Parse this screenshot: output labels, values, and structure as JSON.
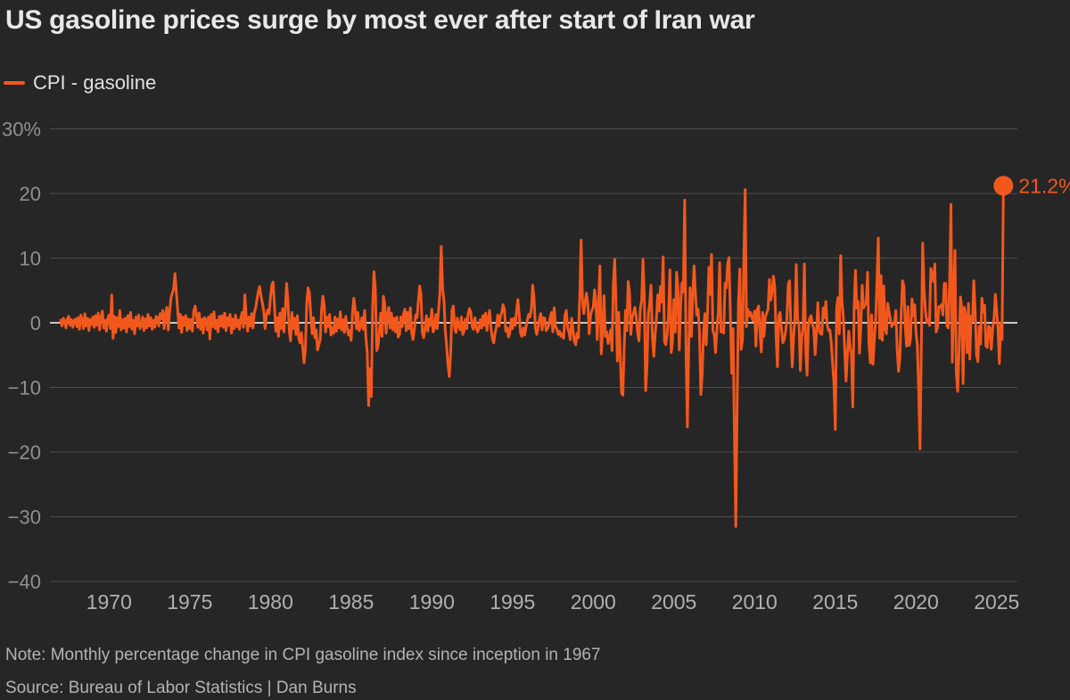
{
  "title": "US gasoline prices surge by most ever after start of Iran war",
  "legend": {
    "label": "CPI - gasoline",
    "color": "#f2581c"
  },
  "note": "Note: Monthly percentage change in CPI gasoline index since inception in 1967",
  "source": "Source: Bureau of Labor Statistics | Dan Burns",
  "chart_data": {
    "type": "line",
    "title": "US gasoline prices surge by most ever after start of Iran war",
    "series_name": "CPI - gasoline",
    "unit": "percent change, monthly",
    "grid": "horizontal",
    "zero_line": true,
    "legend_position": "top-left",
    "ylim": [
      -42,
      33
    ],
    "xlim": [
      1966.5,
      2026.5
    ],
    "start_year": 1967,
    "x_step_years": 0.0833,
    "x_ticks": [
      1970,
      1975,
      1980,
      1985,
      1990,
      1995,
      2000,
      2005,
      2010,
      2015,
      2020,
      2025
    ],
    "y_ticks": [
      {
        "value": 30,
        "label": "30%"
      },
      {
        "value": 20,
        "label": "20"
      },
      {
        "value": 10,
        "label": "10"
      },
      {
        "value": 0,
        "label": "0"
      },
      {
        "value": -10,
        "label": "−10"
      },
      {
        "value": -20,
        "label": "−20"
      },
      {
        "value": -30,
        "label": "−30"
      },
      {
        "value": -40,
        "label": "−40"
      }
    ],
    "end_label": "21.2%",
    "end_value": 21.2,
    "colors": {
      "background": "#262626",
      "title_text": "#e8e8e8",
      "legend_text": "#e0e0e0",
      "grid": "#4d4d4d",
      "zero_line": "#ffffff",
      "axis_y_text": "#909090",
      "axis_x_text": "#b0b0b0",
      "line": "#f2581c",
      "note_text": "#b3b3b3"
    },
    "monthly_values_by_year": [
      [
        0.4,
        -0.5,
        0.7,
        0.3,
        -0.8,
        0.6,
        1.0,
        -0.4,
        0.5,
        -0.7,
        0.3,
        0.6
      ],
      [
        -0.6,
        0.8,
        -1.0,
        1.2,
        0.4,
        -0.9,
        1.4,
        -0.5,
        0.7,
        -1.2,
        0.5,
        -0.3
      ],
      [
        0.9,
        -0.7,
        1.1,
        -0.4,
        1.5,
        -1.1,
        0.6,
        1.8,
        -0.8,
        0.4,
        -1.3,
        0.7
      ],
      [
        1.2,
        -0.9,
        4.3,
        -2.4,
        1.0,
        -1.5,
        0.8,
        -0.6,
        1.9,
        -1.1,
        0.5,
        -0.8
      ],
      [
        0.7,
        -1.4,
        1.1,
        -0.6,
        1.6,
        -1.0,
        0.4,
        -1.7,
        0.9,
        -0.5,
        1.2,
        -0.9
      ],
      [
        -0.4,
        0.9,
        -1.2,
        0.6,
        -0.8,
        1.3,
        -0.5,
        0.8,
        -1.0,
        0.4,
        -0.7,
        1.0
      ],
      [
        0.8,
        -0.5,
        1.4,
        0.6,
        1.9,
        -0.9,
        1.2,
        2.4,
        -1.1,
        1.6,
        3.8,
        4.6
      ],
      [
        5.2,
        7.6,
        4.9,
        2.1,
        -0.8,
        1.3,
        -1.5,
        0.9,
        -0.4,
        1.1,
        -1.2,
        0.6
      ],
      [
        -0.9,
        0.5,
        -1.3,
        1.8,
        2.6,
        1.2,
        -0.7,
        1.5,
        -1.0,
        0.6,
        -1.6,
        0.8
      ],
      [
        0.5,
        -1.1,
        0.9,
        -2.5,
        1.3,
        -0.6,
        1.7,
        -0.9,
        0.4,
        -1.4,
        1.0,
        -0.5
      ],
      [
        1.1,
        -0.7,
        1.5,
        -1.2,
        0.8,
        -0.4,
        1.3,
        -1.6,
        0.6,
        -0.9,
        1.2,
        -0.6
      ],
      [
        0.4,
        -1.0,
        0.8,
        1.6,
        -0.7,
        4.3,
        1.1,
        -1.3,
        0.9,
        -0.5,
        1.4,
        -0.8
      ],
      [
        1.5,
        2.3,
        3.6,
        4.8,
        5.6,
        4.2,
        3.1,
        1.8,
        -0.9,
        1.2,
        2.0,
        1.4
      ],
      [
        3.9,
        5.8,
        6.3,
        2.7,
        -1.3,
        0.8,
        -2.1,
        1.5,
        -0.9,
        2.2,
        -1.4,
        1.8
      ],
      [
        6.1,
        3.4,
        -1.2,
        -2.8,
        1.6,
        -0.9,
        0.7,
        -1.8,
        1.1,
        -2.4,
        -3.1,
        -1.5
      ],
      [
        -3.8,
        -6.2,
        -4.1,
        2.9,
        5.4,
        4.6,
        1.2,
        -1.7,
        0.8,
        -2.3,
        -1.1,
        -4.2
      ],
      [
        -3.4,
        -2.6,
        1.9,
        4.1,
        2.8,
        -1.4,
        0.9,
        -0.6,
        1.3,
        -1.9,
        -0.8,
        -1.6
      ],
      [
        0.9,
        -1.3,
        0.6,
        -0.8,
        1.7,
        -1.1,
        0.5,
        -1.5,
        1.0,
        -0.7,
        -1.9,
        -1.2
      ],
      [
        -2.7,
        1.4,
        3.8,
        2.1,
        -0.9,
        1.6,
        -1.2,
        -0.5,
        0.8,
        -1.0,
        1.9,
        -2.4
      ],
      [
        -4.6,
        -12.8,
        -7.1,
        -11.4,
        2.3,
        7.9,
        5.4,
        -4.3,
        -3.6,
        -1.2,
        1.5,
        -2.1
      ],
      [
        4.1,
        2.9,
        -1.6,
        1.2,
        2.4,
        -0.8,
        1.5,
        -1.1,
        0.7,
        -1.4,
        0.9,
        -2.2
      ],
      [
        -1.8,
        0.9,
        -0.6,
        1.4,
        2.1,
        -1.2,
        1.6,
        -0.9,
        2.3,
        -1.5,
        -2.6,
        -1.0
      ],
      [
        1.2,
        0.8,
        3.4,
        5.7,
        4.2,
        -1.6,
        -2.3,
        -0.9,
        1.1,
        -1.3,
        0.6,
        -0.4
      ],
      [
        2.1,
        -1.4,
        -0.7,
        1.3,
        -0.9,
        1.8,
        4.6,
        11.8,
        5.3,
        3.4,
        -1.2,
        -3.6
      ],
      [
        -6.4,
        -8.3,
        -4.7,
        1.9,
        2.6,
        -0.8,
        -1.5,
        0.7,
        -0.4,
        -1.1,
        0.9,
        -1.8
      ],
      [
        -1.2,
        0.6,
        -0.9,
        1.4,
        2.2,
        1.6,
        -0.5,
        -1.0,
        0.8,
        -0.6,
        -1.4,
        -0.9
      ],
      [
        0.5,
        -0.8,
        1.1,
        -0.4,
        1.5,
        -1.2,
        0.7,
        1.9,
        -0.9,
        -2.4,
        -3.1,
        -1.6
      ],
      [
        -0.7,
        1.2,
        -0.5,
        0.9,
        1.6,
        2.8,
        2.1,
        -1.3,
        -0.8,
        -2.2,
        -1.5,
        0.6
      ],
      [
        -0.9,
        0.7,
        -0.4,
        1.8,
        3.6,
        1.2,
        -1.6,
        -2.1,
        -0.8,
        -1.9,
        -0.6,
        0.4
      ],
      [
        1.3,
        0.9,
        2.1,
        5.8,
        3.9,
        -0.7,
        -1.8,
        -0.9,
        0.6,
        1.4,
        -1.1,
        0.8
      ],
      [
        0.7,
        -1.2,
        -0.9,
        -0.4,
        0.8,
        1.6,
        -1.4,
        2.3,
        -0.6,
        -1.0,
        -1.8,
        -1.3
      ],
      [
        -2.1,
        -1.7,
        -2.4,
        1.2,
        1.9,
        -0.8,
        -1.5,
        -2.6,
        0.7,
        -1.1,
        -2.9,
        -3.4
      ],
      [
        -1.6,
        -2.3,
        4.1,
        12.8,
        3.7,
        1.4,
        3.2,
        4.6,
        2.8,
        -1.7,
        1.2,
        1.9
      ],
      [
        2.4,
        5.1,
        3.3,
        -2.6,
        2.9,
        8.8,
        -4.8,
        -1.3,
        4.2,
        -2.1,
        -1.4,
        -3.2
      ],
      [
        -2.4,
        -1.1,
        -4.3,
        6.2,
        9.8,
        2.7,
        -5.9,
        1.6,
        -4.4,
        -10.8,
        -11.2,
        -3.8
      ],
      [
        1.9,
        -1.2,
        6.4,
        4.7,
        -1.8,
        0.9,
        1.5,
        2.4,
        0.8,
        -1.6,
        -2.8,
        2.2
      ],
      [
        3.4,
        9.8,
        4.1,
        -10.5,
        -6.7,
        1.3,
        2.9,
        5.8,
        -2.4,
        -5.2,
        -1.9,
        0.7
      ],
      [
        4.3,
        1.8,
        5.6,
        3.2,
        10.2,
        -2.9,
        -3.4,
        -1.8,
        1.4,
        8.2,
        -4.6,
        -2.7
      ],
      [
        3.6,
        -1.4,
        7.8,
        5.5,
        -4.2,
        2.6,
        6.2,
        4.8,
        19.0,
        -4.6,
        -16.1,
        -3.9
      ],
      [
        5.4,
        -2.1,
        4.3,
        8.8,
        4.6,
        1.2,
        2.1,
        -1.3,
        -11.1,
        -7.9,
        -1.6,
        1.4
      ],
      [
        -3.4,
        1.6,
        8.6,
        4.4,
        10.6,
        -1.2,
        -1.8,
        -4.6,
        -0.9,
        1.7,
        9.3,
        -1.4
      ],
      [
        -1.2,
        -1.6,
        6.1,
        5.4,
        9.2,
        10.1,
        1.3,
        -7.8,
        -0.9,
        -17.6,
        -31.5,
        -12.4
      ],
      [
        3.2,
        8.3,
        -4.1,
        -2.6,
        9.6,
        20.6,
        -0.6,
        2.1,
        1.1,
        1.6,
        0.7,
        0.3
      ],
      [
        1.8,
        -3.6,
        2.1,
        2.6,
        -1.4,
        -4.5,
        1.6,
        -2.1,
        0.9,
        1.5,
        2.1,
        6.7
      ],
      [
        3.5,
        4.7,
        7.2,
        5.5,
        -2.1,
        -6.8,
        1.1,
        1.6,
        -0.9,
        -3.1,
        -2.6,
        -1.4
      ],
      [
        0.6,
        6.0,
        6.5,
        -1.1,
        -6.8,
        -2.2,
        0.5,
        9.0,
        0.6,
        -0.4,
        -7.4,
        -2.3
      ],
      [
        -0.8,
        9.1,
        -4.4,
        -8.1,
        -0.6,
        0.7,
        1.1,
        -0.2,
        -0.9,
        -4.9,
        -1.6,
        3.1
      ],
      [
        -1.1,
        -1.7,
        -1.8,
        2.3,
        0.8,
        3.3,
        -0.4,
        -1.2,
        -1.1,
        -3.1,
        -6.4,
        -9.4
      ],
      [
        -16.5,
        2.4,
        3.9,
        -1.7,
        10.4,
        3.4,
        0.9,
        -4.1,
        -9.0,
        -4.9,
        -1.3,
        -3.9
      ],
      [
        -4.8,
        -13.0,
        2.2,
        8.1,
        2.3,
        3.3,
        -4.7,
        -0.9,
        5.8,
        2.3,
        2.7,
        3.0
      ],
      [
        7.8,
        -3.1,
        -6.2,
        1.2,
        -6.4,
        -2.8,
        0.3,
        6.3,
        13.1,
        -2.4,
        7.3,
        -2.7
      ],
      [
        5.7,
        -0.9,
        -1.7,
        3.0,
        1.7,
        0.5,
        -0.6,
        -0.1,
        -0.2,
        1.9,
        -4.2,
        -7.5
      ],
      [
        -5.5,
        1.5,
        6.5,
        5.7,
        -0.5,
        -3.6,
        2.5,
        -3.5,
        -2.4,
        3.7,
        1.1,
        2.8
      ],
      [
        -1.6,
        -3.4,
        -10.5,
        -19.5,
        -3.5,
        12.3,
        5.3,
        2.0,
        0.1,
        0.5,
        -0.4,
        8.4
      ],
      [
        7.4,
        6.4,
        9.1,
        -1.4,
        -0.7,
        2.5,
        2.4,
        2.8,
        1.2,
        6.1,
        6.1,
        -0.5
      ],
      [
        -0.8,
        6.6,
        18.3,
        -6.1,
        4.1,
        11.2,
        -7.7,
        -10.6,
        -4.9,
        4.0,
        2.3,
        -9.4
      ],
      [
        2.4,
        1.0,
        -4.6,
        3.0,
        -5.6,
        1.0,
        0.2,
        6.5,
        2.1,
        -5.0,
        -6.0,
        -0.6
      ],
      [
        -3.3,
        3.8,
        1.7,
        2.7,
        -3.6,
        -3.8,
        -0.5,
        -0.8,
        -4.1,
        -0.9,
        0.6,
        4.4
      ],
      [
        1.8,
        -1.0,
        -6.3,
        -0.1,
        -2.6,
        21.2
      ]
    ]
  }
}
